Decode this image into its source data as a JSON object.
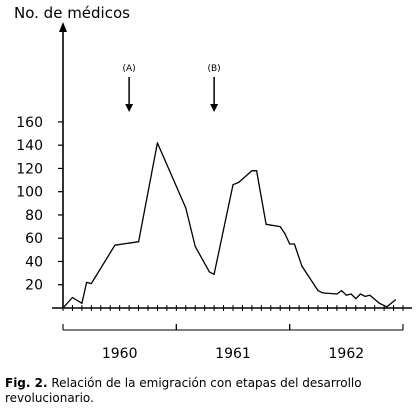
{
  "chart_data": {
    "type": "line",
    "ylabel": "No. de médicos",
    "ylim": [
      0,
      180
    ],
    "yticks": [
      20,
      40,
      60,
      80,
      100,
      120,
      140,
      160
    ],
    "xlim": [
      0,
      36
    ],
    "tick_count": 36,
    "year_groups": [
      {
        "label": "1960",
        "start": 0,
        "end": 12
      },
      {
        "label": "1961",
        "start": 12,
        "end": 24
      },
      {
        "label": "1962",
        "start": 24,
        "end": 36
      }
    ],
    "annotations": [
      {
        "label": "(A)",
        "x": 7.0
      },
      {
        "label": "(B)",
        "x": 16.0
      }
    ],
    "x": [
      0,
      1,
      2,
      2.5,
      3,
      5.5,
      8,
      10,
      13,
      14,
      15.5,
      16,
      18,
      18.6,
      20,
      20.5,
      21.5,
      23,
      23.5,
      24,
      24.5,
      25.3,
      27,
      27.5,
      29,
      29.5,
      30,
      30.5,
      31,
      31.5,
      32,
      32.5,
      33.5,
      34.3,
      35.2
    ],
    "y": [
      0,
      9,
      4,
      22,
      21,
      54,
      57,
      142,
      86,
      53,
      31,
      29,
      106,
      108,
      118,
      118,
      72,
      70,
      64,
      55,
      55,
      36,
      15,
      13,
      12,
      15,
      11,
      12,
      8,
      12,
      10,
      11,
      4,
      1,
      7
    ]
  },
  "caption": {
    "fig_label": "Fig. 2.",
    "text": "Relación de la emigración con etapas del desarrollo revolucionario."
  }
}
